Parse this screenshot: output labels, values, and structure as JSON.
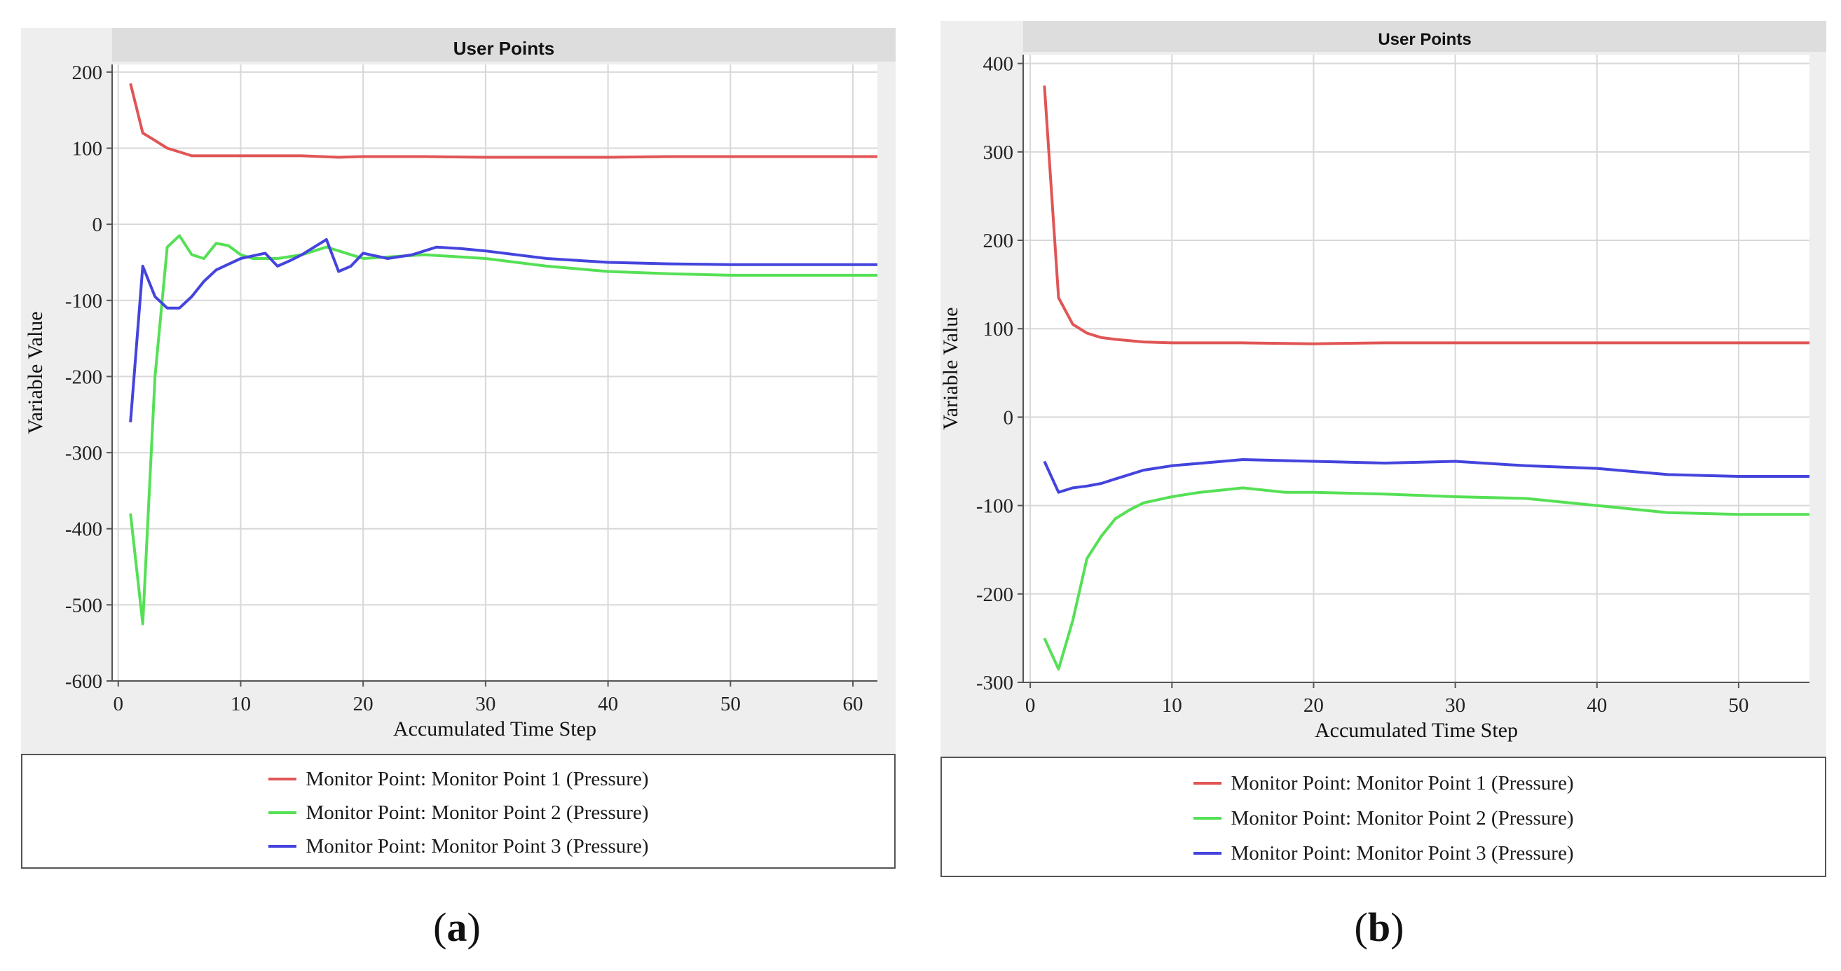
{
  "colors": {
    "series1": "#e05555",
    "series2": "#55e055",
    "series3": "#4444dd"
  },
  "chart_data": [
    {
      "panel": "a",
      "type": "line",
      "title": "User Points",
      "xlabel": "Accumulated Time Step",
      "ylabel": "Variable Value",
      "xlim": [
        -0.5,
        62
      ],
      "ylim": [
        -600,
        210
      ],
      "xticks": [
        0,
        10,
        20,
        30,
        40,
        50,
        60
      ],
      "yticks": [
        200,
        100,
        0,
        -100,
        -200,
        -300,
        -400,
        -500,
        -600
      ],
      "series": [
        {
          "name": "Monitor Point: Monitor Point 1 (Pressure)",
          "x": [
            1,
            2,
            3,
            4,
            5,
            6,
            7,
            10,
            15,
            18,
            20,
            25,
            30,
            35,
            40,
            45,
            50,
            55,
            60,
            62
          ],
          "y": [
            185,
            120,
            110,
            100,
            95,
            90,
            90,
            90,
            90,
            88,
            89,
            89,
            88,
            88,
            88,
            89,
            89,
            89,
            89,
            89
          ]
        },
        {
          "name": "Monitor Point: Monitor Point 2 (Pressure)",
          "x": [
            1,
            2,
            3,
            4,
            5,
            6,
            7,
            8,
            9,
            10,
            11,
            12,
            13,
            15,
            17,
            20,
            25,
            30,
            35,
            40,
            45,
            50,
            55,
            60,
            62
          ],
          "y": [
            -380,
            -525,
            -200,
            -30,
            -15,
            -40,
            -45,
            -25,
            -28,
            -40,
            -45,
            -45,
            -45,
            -40,
            -30,
            -45,
            -40,
            -45,
            -55,
            -62,
            -65,
            -67,
            -67,
            -67,
            -67
          ]
        },
        {
          "name": "Monitor Point: Monitor Point 3 (Pressure)",
          "x": [
            1,
            2,
            3,
            4,
            5,
            6,
            7,
            8,
            10,
            12,
            13,
            14,
            15,
            16,
            17,
            18,
            19,
            20,
            22,
            24,
            26,
            28,
            30,
            35,
            40,
            45,
            50,
            55,
            60,
            62
          ],
          "y": [
            -260,
            -55,
            -95,
            -110,
            -110,
            -95,
            -75,
            -60,
            -45,
            -38,
            -55,
            -48,
            -40,
            -30,
            -20,
            -62,
            -55,
            -38,
            -45,
            -40,
            -30,
            -32,
            -35,
            -45,
            -50,
            -52,
            -53,
            -53,
            -53,
            -53
          ]
        }
      ]
    },
    {
      "panel": "b",
      "type": "line",
      "title": "User Points",
      "xlabel": "Accumulated Time Step",
      "ylabel": "Variable Value",
      "xlim": [
        -0.5,
        55
      ],
      "ylim": [
        -300,
        410
      ],
      "xticks": [
        0,
        10,
        20,
        30,
        40,
        50
      ],
      "yticks": [
        400,
        300,
        200,
        100,
        0,
        -100,
        -200,
        -300
      ],
      "series": [
        {
          "name": "Monitor Point: Monitor Point 1 (Pressure)",
          "x": [
            1,
            2,
            3,
            4,
            5,
            6,
            8,
            10,
            15,
            20,
            25,
            30,
            35,
            40,
            45,
            50,
            55
          ],
          "y": [
            375,
            135,
            105,
            95,
            90,
            88,
            85,
            84,
            84,
            83,
            84,
            84,
            84,
            84,
            84,
            84,
            84
          ]
        },
        {
          "name": "Monitor Point: Monitor Point 2 (Pressure)",
          "x": [
            1,
            2,
            3,
            4,
            5,
            6,
            7,
            8,
            10,
            12,
            15,
            18,
            20,
            25,
            30,
            35,
            40,
            45,
            50,
            55
          ],
          "y": [
            -250,
            -285,
            -230,
            -160,
            -135,
            -115,
            -105,
            -97,
            -90,
            -85,
            -80,
            -85,
            -85,
            -87,
            -90,
            -92,
            -100,
            -108,
            -110,
            -110
          ]
        },
        {
          "name": "Monitor Point: Monitor Point 3 (Pressure)",
          "x": [
            1,
            2,
            3,
            4,
            5,
            6,
            8,
            10,
            15,
            20,
            25,
            30,
            35,
            40,
            45,
            50,
            55
          ],
          "y": [
            -50,
            -85,
            -80,
            -78,
            -75,
            -70,
            -60,
            -55,
            -48,
            -50,
            -52,
            -50,
            -55,
            -58,
            -65,
            -67,
            -67
          ]
        }
      ]
    }
  ],
  "panel_labels": {
    "a": "a",
    "b": "b"
  }
}
